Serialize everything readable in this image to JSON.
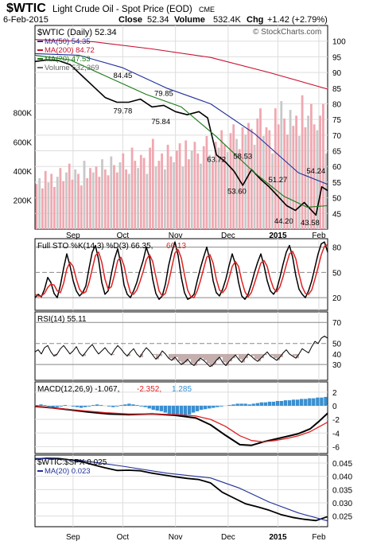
{
  "header": {
    "symbol": "$WTIC",
    "name": "Light Crude Oil - Spot Price (EOD)",
    "exchange": "CME",
    "date": "6-Feb-2015",
    "close_label": "Close",
    "close": "52.34",
    "volume_label": "Volume",
    "volume": "532.4K",
    "chg_label": "Chg",
    "chg": "+1.42 (+2.79%)",
    "watermark": "© StockCharts.com"
  },
  "colors": {
    "price_bar": "#000000",
    "ma50": "#1f2f9a",
    "ma200": "#c8102e",
    "ma20": "#1b7a1b",
    "volume_up": "#f0a8b0",
    "volume_down": "#c8c8c8",
    "sto_k": "#000000",
    "sto_d": "#e02020",
    "macd": "#000000",
    "signal": "#e02020",
    "histogram": "#3a8fd0",
    "ratio": "#000000",
    "ratio_ma": "#1f2f9a",
    "grid": "#dddddd"
  },
  "x_axis": {
    "months": [
      "Sep",
      "Oct",
      "Nov",
      "Dec",
      "2015",
      "Feb"
    ],
    "month_pos": [
      0.13,
      0.3,
      0.48,
      0.66,
      0.83,
      0.97
    ]
  },
  "chart_data": [
    {
      "type": "line",
      "title": "$WTIC (Daily) 52.34",
      "legend": [
        {
          "label": "$WTIC (Daily)",
          "value": "52.34"
        },
        {
          "label": "MA(50)",
          "value": "54.35"
        },
        {
          "label": "MA(200)",
          "value": "84.72"
        },
        {
          "label": "MA(20)",
          "value": "47.53"
        },
        {
          "label": "Volume",
          "value": "532,369"
        }
      ],
      "ylim": [
        40,
        105
      ],
      "y_ticks": [
        45,
        50,
        55,
        60,
        65,
        70,
        75,
        80,
        85,
        90,
        95,
        100
      ],
      "volume_ticks": [
        "200K",
        "400K",
        "600K",
        "800K"
      ],
      "volume_tick_values": [
        200,
        400,
        600,
        800
      ],
      "volume_max": 1400,
      "annotations": [
        {
          "text": "84.45",
          "x": 0.3,
          "y": 88.2
        },
        {
          "text": "79.85",
          "x": 0.44,
          "y": 82.5
        },
        {
          "text": "79.78",
          "x": 0.3,
          "y": 77.0
        },
        {
          "text": "75.84",
          "x": 0.43,
          "y": 73.5
        },
        {
          "text": "63.72",
          "x": 0.62,
          "y": 61.5
        },
        {
          "text": "58.53",
          "x": 0.71,
          "y": 62.5
        },
        {
          "text": "53.60",
          "x": 0.69,
          "y": 51.3
        },
        {
          "text": "51.27",
          "x": 0.83,
          "y": 55.0
        },
        {
          "text": "54.24",
          "x": 0.96,
          "y": 57.8
        },
        {
          "text": "44.20",
          "x": 0.85,
          "y": 41.8
        },
        {
          "text": "43.58",
          "x": 0.94,
          "y": 41.3
        }
      ],
      "series": [
        {
          "name": "$WTIC (Daily)",
          "x": [
            0.0,
            0.04,
            0.08,
            0.12,
            0.16,
            0.2,
            0.24,
            0.28,
            0.32,
            0.36,
            0.4,
            0.44,
            0.48,
            0.52,
            0.56,
            0.59,
            0.62,
            0.65,
            0.68,
            0.71,
            0.74,
            0.77,
            0.8,
            0.83,
            0.86,
            0.89,
            0.92,
            0.94,
            0.96,
            0.98,
            1.0
          ],
          "values": [
            93.5,
            94.0,
            93.8,
            92.5,
            89.0,
            85.5,
            82.0,
            80.5,
            80.5,
            81.5,
            79.0,
            79.5,
            77.5,
            76.5,
            77.5,
            75.5,
            63.7,
            61.5,
            58.5,
            54.0,
            59.0,
            56.0,
            53.5,
            50.5,
            47.5,
            46.0,
            48.5,
            46.5,
            44.5,
            53.5,
            52.3
          ]
        },
        {
          "name": "MA(200)",
          "x": [
            0.0,
            0.2,
            0.4,
            0.6,
            0.8,
            1.0
          ],
          "values": [
            100.5,
            99.8,
            97.5,
            94.8,
            90.0,
            84.7
          ]
        },
        {
          "name": "MA(50)",
          "x": [
            0.0,
            0.15,
            0.3,
            0.45,
            0.6,
            0.75,
            0.9,
            1.0
          ],
          "values": [
            96.0,
            95.5,
            91.5,
            85.0,
            80.0,
            70.5,
            58.0,
            54.3
          ]
        },
        {
          "name": "MA(20)",
          "x": [
            0.0,
            0.12,
            0.25,
            0.38,
            0.5,
            0.62,
            0.75,
            0.85,
            0.93,
            1.0
          ],
          "values": [
            95.5,
            94.0,
            88.5,
            83.0,
            79.0,
            69.5,
            58.0,
            50.5,
            47.0,
            47.5
          ]
        },
        {
          "name": "Volume",
          "bars": true,
          "values": [
            310,
            350,
            280,
            400,
            320,
            380,
            290,
            360,
            420,
            330,
            390,
            450,
            340,
            410,
            380,
            300,
            470,
            350,
            420,
            390,
            430,
            360,
            480,
            410,
            370,
            500,
            440,
            390,
            460,
            520,
            410,
            380,
            560,
            470,
            420,
            510,
            490,
            380,
            560,
            620,
            430,
            470,
            520,
            410,
            580,
            500,
            460,
            540,
            590,
            430,
            610,
            480,
            540,
            600,
            520,
            450,
            570,
            640,
            510,
            460,
            600,
            560,
            680,
            580,
            530,
            660,
            720,
            620,
            550,
            700,
            650,
            730,
            690,
            580,
            760,
            830,
            640,
            700,
            680,
            520,
            830,
            720,
            880,
            760,
            650,
            820,
            710,
            780,
            640,
            920,
            700,
            780,
            860,
            720,
            680,
            780,
            860,
            520
          ]
        }
      ]
    },
    {
      "type": "line",
      "title": "Full STO %K(14,3) %D(3) 66.35, 66.13",
      "legend": [
        {
          "label": "Full STO %K(14,3) %D(3)",
          "value": "66.35,"
        },
        {
          "label": "",
          "value": "66.13"
        }
      ],
      "ylim": [
        5,
        90
      ],
      "y_ticks": [
        20,
        50,
        80
      ],
      "series": [
        {
          "name": "%K",
          "values": [
            20,
            24,
            21,
            30,
            44,
            38,
            25,
            20,
            35,
            55,
            72,
            58,
            40,
            28,
            22,
            26,
            34,
            55,
            74,
            82,
            65,
            38,
            24,
            28,
            48,
            66,
            78,
            60,
            35,
            24,
            20,
            28,
            38,
            52,
            64,
            80,
            68,
            42,
            25,
            18,
            22,
            36,
            58,
            74,
            86,
            70,
            44,
            26,
            18,
            20,
            24,
            40,
            55,
            68,
            80,
            64,
            40,
            26,
            22,
            30,
            42,
            58,
            72,
            60,
            38,
            22,
            18,
            24,
            36,
            50,
            62,
            72,
            58,
            40,
            28,
            24,
            30,
            44,
            60,
            74,
            82,
            68,
            46,
            30,
            24,
            20,
            28,
            40,
            56,
            72,
            84,
            86,
            74
          ]
        },
        {
          "name": "%D",
          "values": [
            24,
            22,
            22,
            25,
            32,
            36,
            35,
            28,
            26,
            37,
            54,
            62,
            57,
            42,
            30,
            25,
            27,
            38,
            54,
            70,
            74,
            62,
            42,
            30,
            33,
            47,
            64,
            68,
            58,
            40,
            26,
            24,
            29,
            39,
            51,
            65,
            71,
            63,
            45,
            28,
            22,
            25,
            38,
            56,
            73,
            77,
            67,
            47,
            29,
            21,
            20,
            28,
            40,
            54,
            68,
            71,
            61,
            42,
            29,
            26,
            31,
            43,
            57,
            63,
            57,
            40,
            27,
            21,
            26,
            37,
            49,
            61,
            64,
            57,
            42,
            31,
            27,
            33,
            45,
            59,
            72,
            75,
            66,
            48,
            33,
            25,
            24,
            29,
            42,
            56,
            71,
            81,
            83
          ]
        }
      ]
    },
    {
      "type": "line",
      "title": "RSI(14) 55.11",
      "legend": [
        {
          "label": "RSI(14)",
          "value": "55.11"
        }
      ],
      "ylim": [
        15,
        80
      ],
      "y_ticks": [
        30,
        50,
        70
      ],
      "y_tick_labels": [
        "30",
        "50",
        "70"
      ],
      "extra_ticks": [
        "40"
      ],
      "extra_tick_values": [
        40
      ],
      "series": [
        {
          "name": "RSI(14)",
          "values": [
            42,
            44,
            40,
            46,
            48,
            42,
            38,
            40,
            45,
            48,
            44,
            40,
            43,
            47,
            41,
            38,
            42,
            46,
            49,
            44,
            40,
            43,
            46,
            42,
            39,
            44,
            48,
            45,
            41,
            38,
            42,
            45,
            40,
            37,
            42,
            46,
            43,
            39,
            35,
            38,
            43,
            40,
            36,
            34,
            37,
            33,
            30,
            32,
            35,
            31,
            29,
            33,
            36,
            34,
            31,
            28,
            30,
            34,
            37,
            32,
            29,
            33,
            36,
            39,
            35,
            32,
            36,
            40,
            38,
            35,
            33,
            36,
            39,
            42,
            38,
            36,
            34,
            37,
            41,
            44,
            40,
            38,
            36,
            40,
            45,
            43,
            41,
            47,
            52,
            50,
            55,
            57,
            55
          ]
        }
      ]
    },
    {
      "type": "line",
      "title": "MACD(12,26,9) -1.067, -2.352, 1.285",
      "legend": [
        {
          "label": "MACD(12,26,9)",
          "value": "-1.067,"
        },
        {
          "label": "",
          "value": "-2.352,"
        },
        {
          "label": "",
          "value": "1.285"
        }
      ],
      "ylim": [
        -7,
        3.5
      ],
      "y_ticks": [
        -6,
        -4,
        -2,
        0,
        2
      ],
      "series": [
        {
          "name": "MACD",
          "x": [
            0.0,
            0.06,
            0.12,
            0.18,
            0.25,
            0.32,
            0.4,
            0.48,
            0.55,
            0.6,
            0.65,
            0.7,
            0.74,
            0.78,
            0.82,
            0.86,
            0.9,
            0.94,
            0.97,
            1.0
          ],
          "values": [
            -0.1,
            -0.3,
            -0.6,
            -0.9,
            -1.2,
            -1.3,
            -1.2,
            -1.4,
            -1.8,
            -2.8,
            -4.3,
            -5.7,
            -5.8,
            -5.3,
            -4.9,
            -4.5,
            -4.1,
            -3.4,
            -2.3,
            -1.1
          ]
        },
        {
          "name": "Signal",
          "x": [
            0.0,
            0.08,
            0.16,
            0.24,
            0.32,
            0.4,
            0.48,
            0.55,
            0.6,
            0.65,
            0.7,
            0.74,
            0.78,
            0.82,
            0.86,
            0.9,
            0.94,
            0.97,
            1.0
          ],
          "values": [
            -0.1,
            -0.4,
            -0.7,
            -1.0,
            -1.2,
            -1.2,
            -1.3,
            -1.5,
            -2.0,
            -3.0,
            -4.4,
            -5.1,
            -5.3,
            -5.1,
            -4.8,
            -4.4,
            -3.8,
            -3.1,
            -2.4
          ]
        },
        {
          "name": "Histogram",
          "bars": true,
          "values": [
            0.1,
            0.2,
            0.1,
            -0.1,
            -0.2,
            -0.2,
            -0.1,
            0.1,
            0.0,
            -0.1,
            -0.2,
            -0.3,
            -0.2,
            -0.1,
            0.1,
            0.2,
            0.1,
            0.0,
            -0.1,
            -0.2,
            -0.1,
            0.1,
            0.2,
            0.3,
            0.2,
            0.1,
            -0.1,
            -0.2,
            -0.4,
            -0.6,
            -0.7,
            -0.8,
            -1.0,
            -1.2,
            -1.4,
            -1.5,
            -1.6,
            -1.5,
            -1.3,
            -1.0,
            -0.8,
            -0.6,
            -0.5,
            -0.4,
            -0.3,
            -0.2,
            -0.1,
            0.0,
            0.1,
            0.2,
            0.3,
            0.3,
            0.3,
            0.2,
            0.3,
            0.4,
            0.5,
            0.5,
            0.6,
            0.6,
            0.7,
            0.7,
            0.8,
            0.8,
            0.9,
            0.9,
            1.0,
            1.0,
            1.1,
            1.1,
            1.2,
            1.2,
            1.3
          ]
        }
      ]
    },
    {
      "type": "line",
      "title": "$WTIC:$SPX 0.025",
      "legend": [
        {
          "label": "$WTIC:$SPX",
          "value": "0.025"
        },
        {
          "label": "MA(20)",
          "value": "0.023"
        }
      ],
      "ylim": [
        0.021,
        0.048
      ],
      "y_ticks": [
        0.025,
        0.03,
        0.035,
        0.04,
        0.045
      ],
      "y_tick_labels": [
        "0.025",
        "0.030",
        "0.035",
        "0.040",
        "0.045"
      ],
      "series": [
        {
          "name": "$WTIC:$SPX",
          "x": [
            0.0,
            0.04,
            0.08,
            0.12,
            0.16,
            0.2,
            0.24,
            0.28,
            0.32,
            0.36,
            0.4,
            0.44,
            0.48,
            0.52,
            0.56,
            0.6,
            0.64,
            0.68,
            0.72,
            0.76,
            0.8,
            0.84,
            0.88,
            0.92,
            0.96,
            1.0
          ],
          "values": [
            0.0465,
            0.0468,
            0.0467,
            0.0462,
            0.0455,
            0.0443,
            0.0432,
            0.0422,
            0.0423,
            0.0421,
            0.0412,
            0.0405,
            0.0398,
            0.0392,
            0.0388,
            0.0375,
            0.034,
            0.0318,
            0.0296,
            0.0285,
            0.0272,
            0.0256,
            0.0245,
            0.0238,
            0.0233,
            0.0248
          ]
        },
        {
          "name": "MA(20)",
          "x": [
            0.0,
            0.15,
            0.3,
            0.45,
            0.6,
            0.7,
            0.8,
            0.9,
            1.0
          ],
          "values": [
            0.0468,
            0.0461,
            0.0438,
            0.0412,
            0.0394,
            0.0355,
            0.0303,
            0.0262,
            0.0232
          ]
        }
      ]
    }
  ]
}
